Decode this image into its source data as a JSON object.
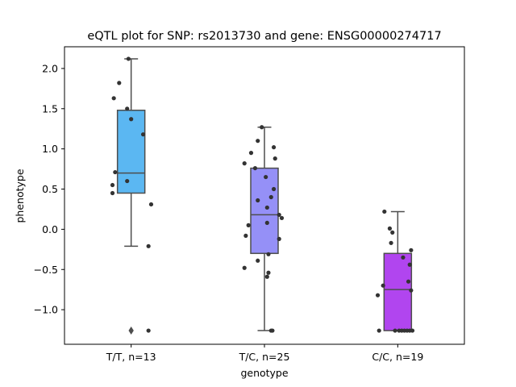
{
  "chart_data": {
    "type": "box",
    "title": "eQTL plot for SNP: rs2013730 and gene: ENSG00000274717",
    "xlabel": "genotype",
    "ylabel": "phenotype",
    "ylim": [
      -1.43,
      2.27
    ],
    "yticks": [
      -1.0,
      -0.5,
      0.0,
      0.5,
      1.0,
      1.5,
      2.0
    ],
    "ytick_labels": [
      "−1.0",
      "−0.5",
      "0.0",
      "0.5",
      "1.0",
      "1.5",
      "2.0"
    ],
    "grid": false,
    "categories": [
      "T/T, n=13",
      "T/C, n=25",
      "C/C, n=19"
    ],
    "boxes": [
      {
        "category": "T/T, n=13",
        "color": "#5bb7f2",
        "q1": 0.45,
        "median": 0.7,
        "q3": 1.48,
        "whisker_low": -0.21,
        "whisker_high": 2.12,
        "outliers": [
          -1.26
        ],
        "points": [
          {
            "x": -0.02,
            "y": 2.12
          },
          {
            "x": -0.09,
            "y": 1.82
          },
          {
            "x": -0.13,
            "y": 1.63
          },
          {
            "x": -0.03,
            "y": 1.5
          },
          {
            "x": 0.0,
            "y": 1.37
          },
          {
            "x": 0.09,
            "y": 1.18
          },
          {
            "x": -0.12,
            "y": 0.71
          },
          {
            "x": -0.14,
            "y": 0.55
          },
          {
            "x": -0.03,
            "y": 0.6
          },
          {
            "x": -0.14,
            "y": 0.45
          },
          {
            "x": 0.15,
            "y": 0.31
          },
          {
            "x": 0.13,
            "y": -0.21
          },
          {
            "x": 0.13,
            "y": -1.26
          }
        ]
      },
      {
        "category": "T/C, n=25",
        "color": "#9590f7",
        "q1": -0.3,
        "median": 0.18,
        "q3": 0.76,
        "whisker_low": -1.26,
        "whisker_high": 1.27,
        "outliers": [],
        "points": [
          {
            "x": -0.02,
            "y": 1.27
          },
          {
            "x": -0.05,
            "y": 1.1
          },
          {
            "x": 0.07,
            "y": 1.02
          },
          {
            "x": -0.1,
            "y": 0.95
          },
          {
            "x": 0.08,
            "y": 0.88
          },
          {
            "x": -0.15,
            "y": 0.82
          },
          {
            "x": -0.07,
            "y": 0.76
          },
          {
            "x": 0.01,
            "y": 0.65
          },
          {
            "x": 0.07,
            "y": 0.5
          },
          {
            "x": 0.05,
            "y": 0.4
          },
          {
            "x": -0.05,
            "y": 0.36
          },
          {
            "x": 0.02,
            "y": 0.27
          },
          {
            "x": 0.11,
            "y": 0.18
          },
          {
            "x": 0.13,
            "y": 0.14
          },
          {
            "x": 0.02,
            "y": 0.08
          },
          {
            "x": -0.12,
            "y": 0.05
          },
          {
            "x": -0.14,
            "y": -0.08
          },
          {
            "x": 0.11,
            "y": -0.12
          },
          {
            "x": 0.03,
            "y": -0.31
          },
          {
            "x": -0.05,
            "y": -0.39
          },
          {
            "x": -0.15,
            "y": -0.48
          },
          {
            "x": 0.03,
            "y": -0.54
          },
          {
            "x": 0.02,
            "y": -0.59
          },
          {
            "x": 0.05,
            "y": -1.26
          },
          {
            "x": 0.06,
            "y": -1.26
          }
        ]
      },
      {
        "category": "C/C, n=19",
        "color": "#b145ef",
        "q1": -1.26,
        "median": -0.75,
        "q3": -0.3,
        "whisker_low": -1.26,
        "whisker_high": 0.22,
        "outliers": [],
        "points": [
          {
            "x": -0.1,
            "y": 0.22
          },
          {
            "x": -0.06,
            "y": 0.01
          },
          {
            "x": -0.04,
            "y": -0.04
          },
          {
            "x": -0.05,
            "y": -0.17
          },
          {
            "x": 0.1,
            "y": -0.26
          },
          {
            "x": 0.04,
            "y": -0.35
          },
          {
            "x": 0.09,
            "y": -0.44
          },
          {
            "x": 0.08,
            "y": -0.65
          },
          {
            "x": -0.11,
            "y": -0.7
          },
          {
            "x": 0.1,
            "y": -0.76
          },
          {
            "x": -0.15,
            "y": -0.82
          },
          {
            "x": -0.14,
            "y": -1.26
          },
          {
            "x": -0.02,
            "y": -1.26
          },
          {
            "x": 0.01,
            "y": -1.26
          },
          {
            "x": 0.03,
            "y": -1.26
          },
          {
            "x": 0.05,
            "y": -1.26
          },
          {
            "x": 0.07,
            "y": -1.26
          },
          {
            "x": 0.09,
            "y": -1.26
          },
          {
            "x": 0.11,
            "y": -1.26
          }
        ]
      }
    ],
    "colors": {
      "frame": "#000000",
      "whisker": "#4d4d4d",
      "point": "#333333"
    }
  }
}
